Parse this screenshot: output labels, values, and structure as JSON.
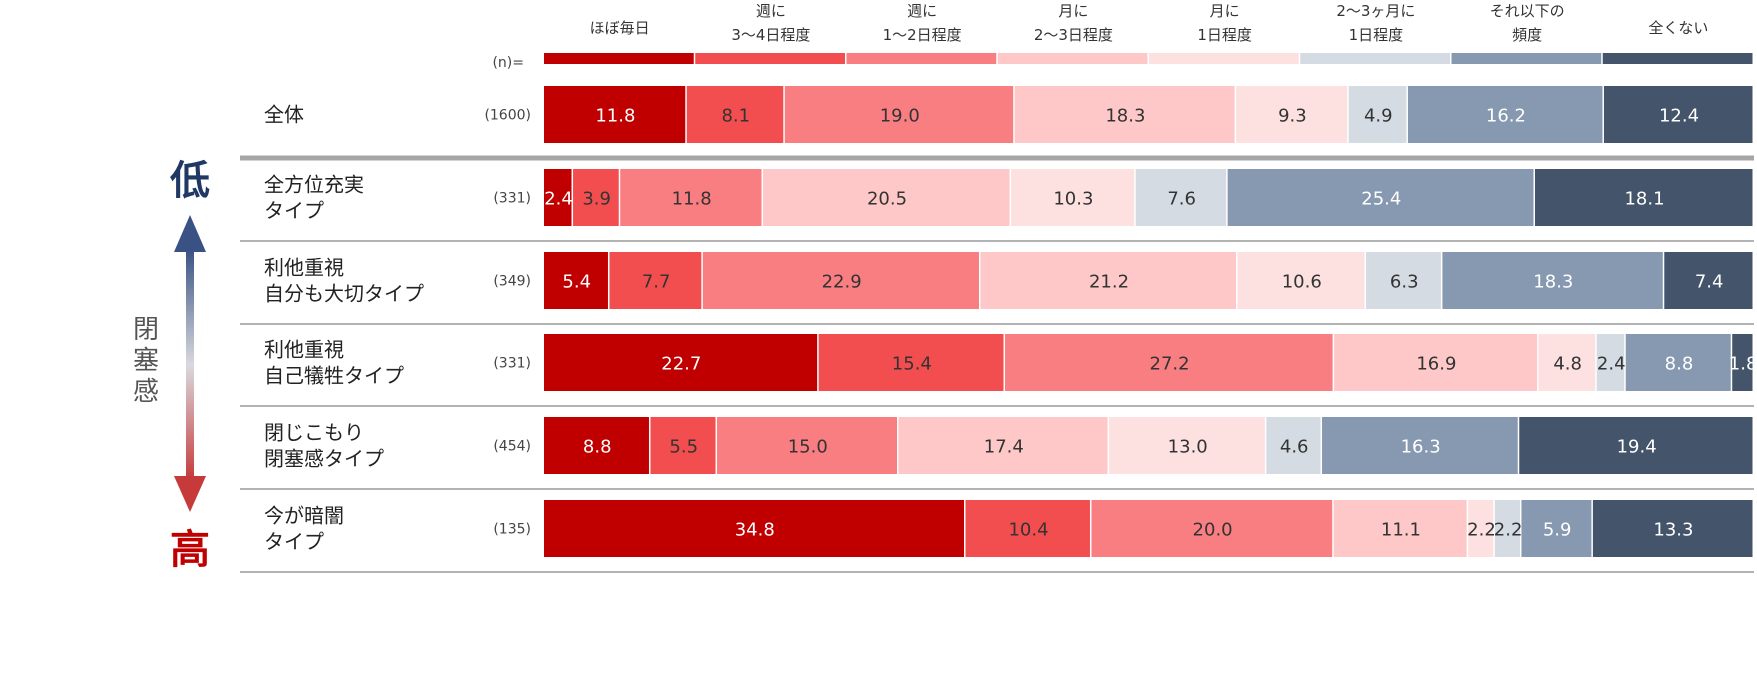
{
  "chart_data": {
    "type": "bar",
    "stacked": "100%",
    "n_prefix": "(n)=",
    "categories": [
      "ほぼ毎日",
      "週に\n3〜4日程度",
      "週に\n1〜2日程度",
      "月に\n2〜3日程度",
      "月に\n1日程度",
      "2〜3ヶ月に\n1日程度",
      "それ以下の\n頻度",
      "全くない"
    ],
    "colors": [
      "#c00000",
      "#f24e4f",
      "#f97e81",
      "#fec8c8",
      "#fde1e1",
      "#d5dbe3",
      "#8799b0",
      "#44546a"
    ],
    "text_colors": [
      "#ffffff",
      "#333333",
      "#333333",
      "#333333",
      "#333333",
      "#333333",
      "#ffffff",
      "#ffffff"
    ],
    "rows": [
      {
        "label": "全体",
        "n": "(1600)",
        "values": [
          11.8,
          8.1,
          19.0,
          18.3,
          9.3,
          4.9,
          16.2,
          12.4
        ]
      },
      {
        "label": "全方位充実\nタイプ",
        "n": "(331)",
        "values": [
          2.4,
          3.9,
          11.8,
          20.5,
          10.3,
          7.6,
          25.4,
          18.1
        ]
      },
      {
        "label": "利他重視\n自分も大切タイプ",
        "n": "(349)",
        "values": [
          5.4,
          7.7,
          22.9,
          21.2,
          10.6,
          6.3,
          18.3,
          7.4
        ]
      },
      {
        "label": "利他重視\n自己犠牲タイプ",
        "n": "(331)",
        "values": [
          22.7,
          15.4,
          27.2,
          16.9,
          4.8,
          2.4,
          8.8,
          1.8
        ]
      },
      {
        "label": "閉じこもり\n閉塞感タイプ",
        "n": "(454)",
        "values": [
          8.8,
          5.5,
          15.0,
          17.4,
          13.0,
          4.6,
          16.3,
          19.4
        ]
      },
      {
        "label": "今が暗闇\nタイプ",
        "n": "(135)",
        "values": [
          34.8,
          10.4,
          20.0,
          11.1,
          2.2,
          2.2,
          5.9,
          13.3
        ]
      }
    ],
    "axis": {
      "top_label": "低",
      "bottom_label": "高",
      "middle_label": "閉塞感",
      "top_color": "#1f3864",
      "bottom_color": "#c00000"
    }
  }
}
